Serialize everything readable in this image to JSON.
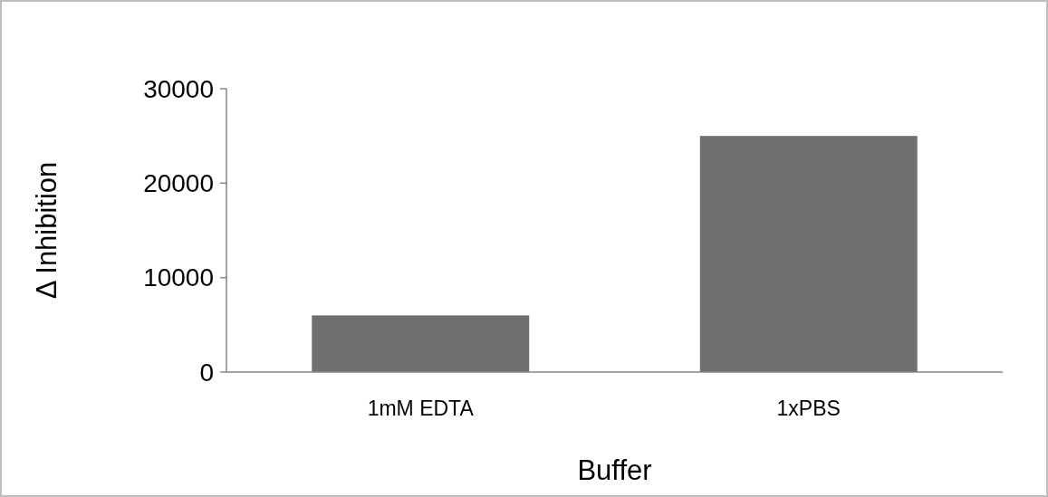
{
  "chart_data": {
    "type": "bar",
    "xlabel": "Buffer",
    "ylabel": "Δ Inhibition",
    "categories": [
      "1mM EDTA",
      "1xPBS"
    ],
    "values": [
      6000,
      25000
    ],
    "color": "#707070",
    "ylim": [
      0,
      30000
    ],
    "yticks": [
      0,
      10000,
      20000,
      30000
    ],
    "grid": false
  }
}
